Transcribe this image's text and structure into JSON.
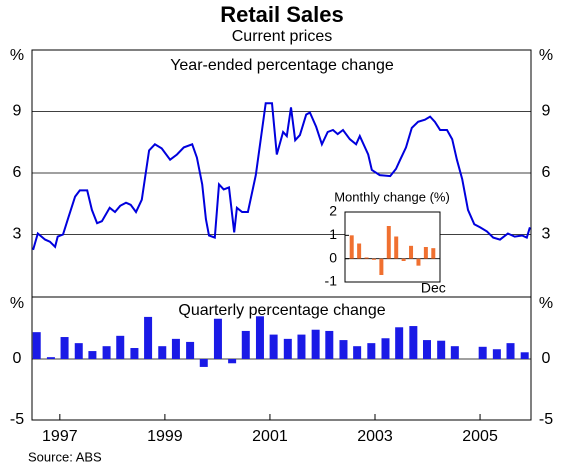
{
  "title": "Retail Sales",
  "subtitle": "Current prices",
  "source": "Source: ABS",
  "chart_data": [
    {
      "type": "line",
      "title": "Year-ended percentage change",
      "color": "#0000dd",
      "x": [
        1996.99,
        1997.08,
        1997.22,
        1997.31,
        1997.41,
        1997.46,
        1997.56,
        1997.66,
        1997.79,
        1997.88,
        1998.02,
        1998.11,
        1998.21,
        1998.3,
        1998.45,
        1998.55,
        1998.65,
        1998.76,
        1998.85,
        1998.95,
        1999.06,
        1999.2,
        1999.31,
        1999.44,
        1999.6,
        1999.73,
        1999.86,
        2000.02,
        2000.11,
        2000.21,
        2000.28,
        2000.34,
        2000.45,
        2000.53,
        2000.62,
        2000.72,
        2000.82,
        2000.87,
        2000.97,
        2001.08,
        2001.23,
        2001.42,
        2001.54,
        2001.63,
        2001.75,
        2001.82,
        2001.9,
        2001.98,
        2002.07,
        2002.19,
        2002.26,
        2002.38,
        2002.49,
        2002.6,
        2002.7,
        2002.79,
        2002.89,
        2003.02,
        2003.14,
        2003.21,
        2003.37,
        2003.44,
        2003.59,
        2003.79,
        2003.9,
        2003.98,
        2004.09,
        2004.2,
        2004.32,
        2004.45,
        2004.55,
        2004.64,
        2004.74,
        2004.87,
        2004.97,
        2005.06,
        2005.16,
        2005.27,
        2005.39,
        2005.5,
        2005.63,
        2005.75,
        2005.88,
        2006.03,
        2006.16,
        2006.3,
        2006.39,
        2006.45
      ],
      "values": [
        2.25,
        3.05,
        2.75,
        2.65,
        2.4,
        2.9,
        3.0,
        3.8,
        4.85,
        5.15,
        5.15,
        4.2,
        3.55,
        3.65,
        4.3,
        4.1,
        4.4,
        4.55,
        4.45,
        4.1,
        4.7,
        7.1,
        7.4,
        7.2,
        6.65,
        6.9,
        7.25,
        7.4,
        6.75,
        5.45,
        3.75,
        2.95,
        2.85,
        5.45,
        5.2,
        5.3,
        3.1,
        4.3,
        4.1,
        4.1,
        5.9,
        9.4,
        9.4,
        6.9,
        8.0,
        7.8,
        9.2,
        7.6,
        7.85,
        8.85,
        8.95,
        8.25,
        7.4,
        8.0,
        8.1,
        7.9,
        8.1,
        7.65,
        7.4,
        7.8,
        6.9,
        6.15,
        5.9,
        5.85,
        6.2,
        6.65,
        7.25,
        8.2,
        8.5,
        8.6,
        8.75,
        8.5,
        8.1,
        8.1,
        7.65,
        6.65,
        5.7,
        4.2,
        3.5,
        3.35,
        3.15,
        2.85,
        2.75,
        3.05,
        2.9,
        2.95,
        2.85,
        3.35
      ],
      "xlim": [
        1996.97,
        2006.47
      ],
      "ylim": [
        0,
        12
      ],
      "yticks": [
        3,
        6,
        9,
        {
          "value": 12,
          "label": "%"
        }
      ],
      "grid": true
    },
    {
      "type": "bar",
      "title": "Monthly change (%)",
      "color": "#f07030",
      "categories": [
        null,
        null,
        null,
        null,
        null,
        null,
        null,
        null,
        null,
        null,
        null,
        "Dec"
      ],
      "values": [
        1.0,
        0.65,
        0.05,
        -0.05,
        -0.7,
        1.4,
        0.95,
        -0.1,
        0.55,
        -0.3,
        0.5,
        0.45
      ],
      "ylim": [
        -1,
        2
      ],
      "yticks": [
        -1,
        0,
        1,
        2
      ]
    },
    {
      "type": "bar",
      "title": "Quarterly percentage change",
      "color": "#1a1ae6",
      "x": [
        1997.06,
        1997.33,
        1997.59,
        1997.86,
        1998.12,
        1998.39,
        1998.65,
        1998.92,
        1999.18,
        1999.45,
        1999.71,
        1999.98,
        2000.24,
        2000.51,
        2000.78,
        2001.04,
        2001.31,
        2001.57,
        2001.84,
        2002.1,
        2002.37,
        2002.63,
        2002.9,
        2003.16,
        2003.43,
        2003.7,
        2003.96,
        2004.23,
        2004.49,
        2004.76,
        2005.02,
        2005.55,
        2005.82,
        2006.08,
        2006.35
      ],
      "values": [
        2.2,
        0.15,
        1.8,
        1.3,
        0.65,
        1.05,
        1.9,
        0.9,
        3.45,
        1.05,
        1.65,
        1.4,
        -0.65,
        3.3,
        -0.35,
        2.3,
        3.5,
        2.0,
        1.65,
        2.0,
        2.4,
        2.3,
        1.55,
        1.05,
        1.3,
        1.7,
        2.6,
        2.7,
        1.55,
        1.5,
        1.05,
        1.0,
        0.8,
        1.3,
        0.55
      ],
      "xlim": [
        1996.97,
        2006.47
      ],
      "ylim": [
        -5,
        5
      ],
      "yticks": [
        -5,
        0,
        {
          "value": 5,
          "label": "%"
        }
      ],
      "xticks": [
        {
          "value": 1997.5,
          "label": "1997"
        },
        {
          "value": 1999.5,
          "label": "1999"
        },
        {
          "value": 2001.5,
          "label": "2001"
        },
        {
          "value": 2003.5,
          "label": "2003"
        },
        {
          "value": 2005.5,
          "label": "2005"
        }
      ]
    }
  ]
}
